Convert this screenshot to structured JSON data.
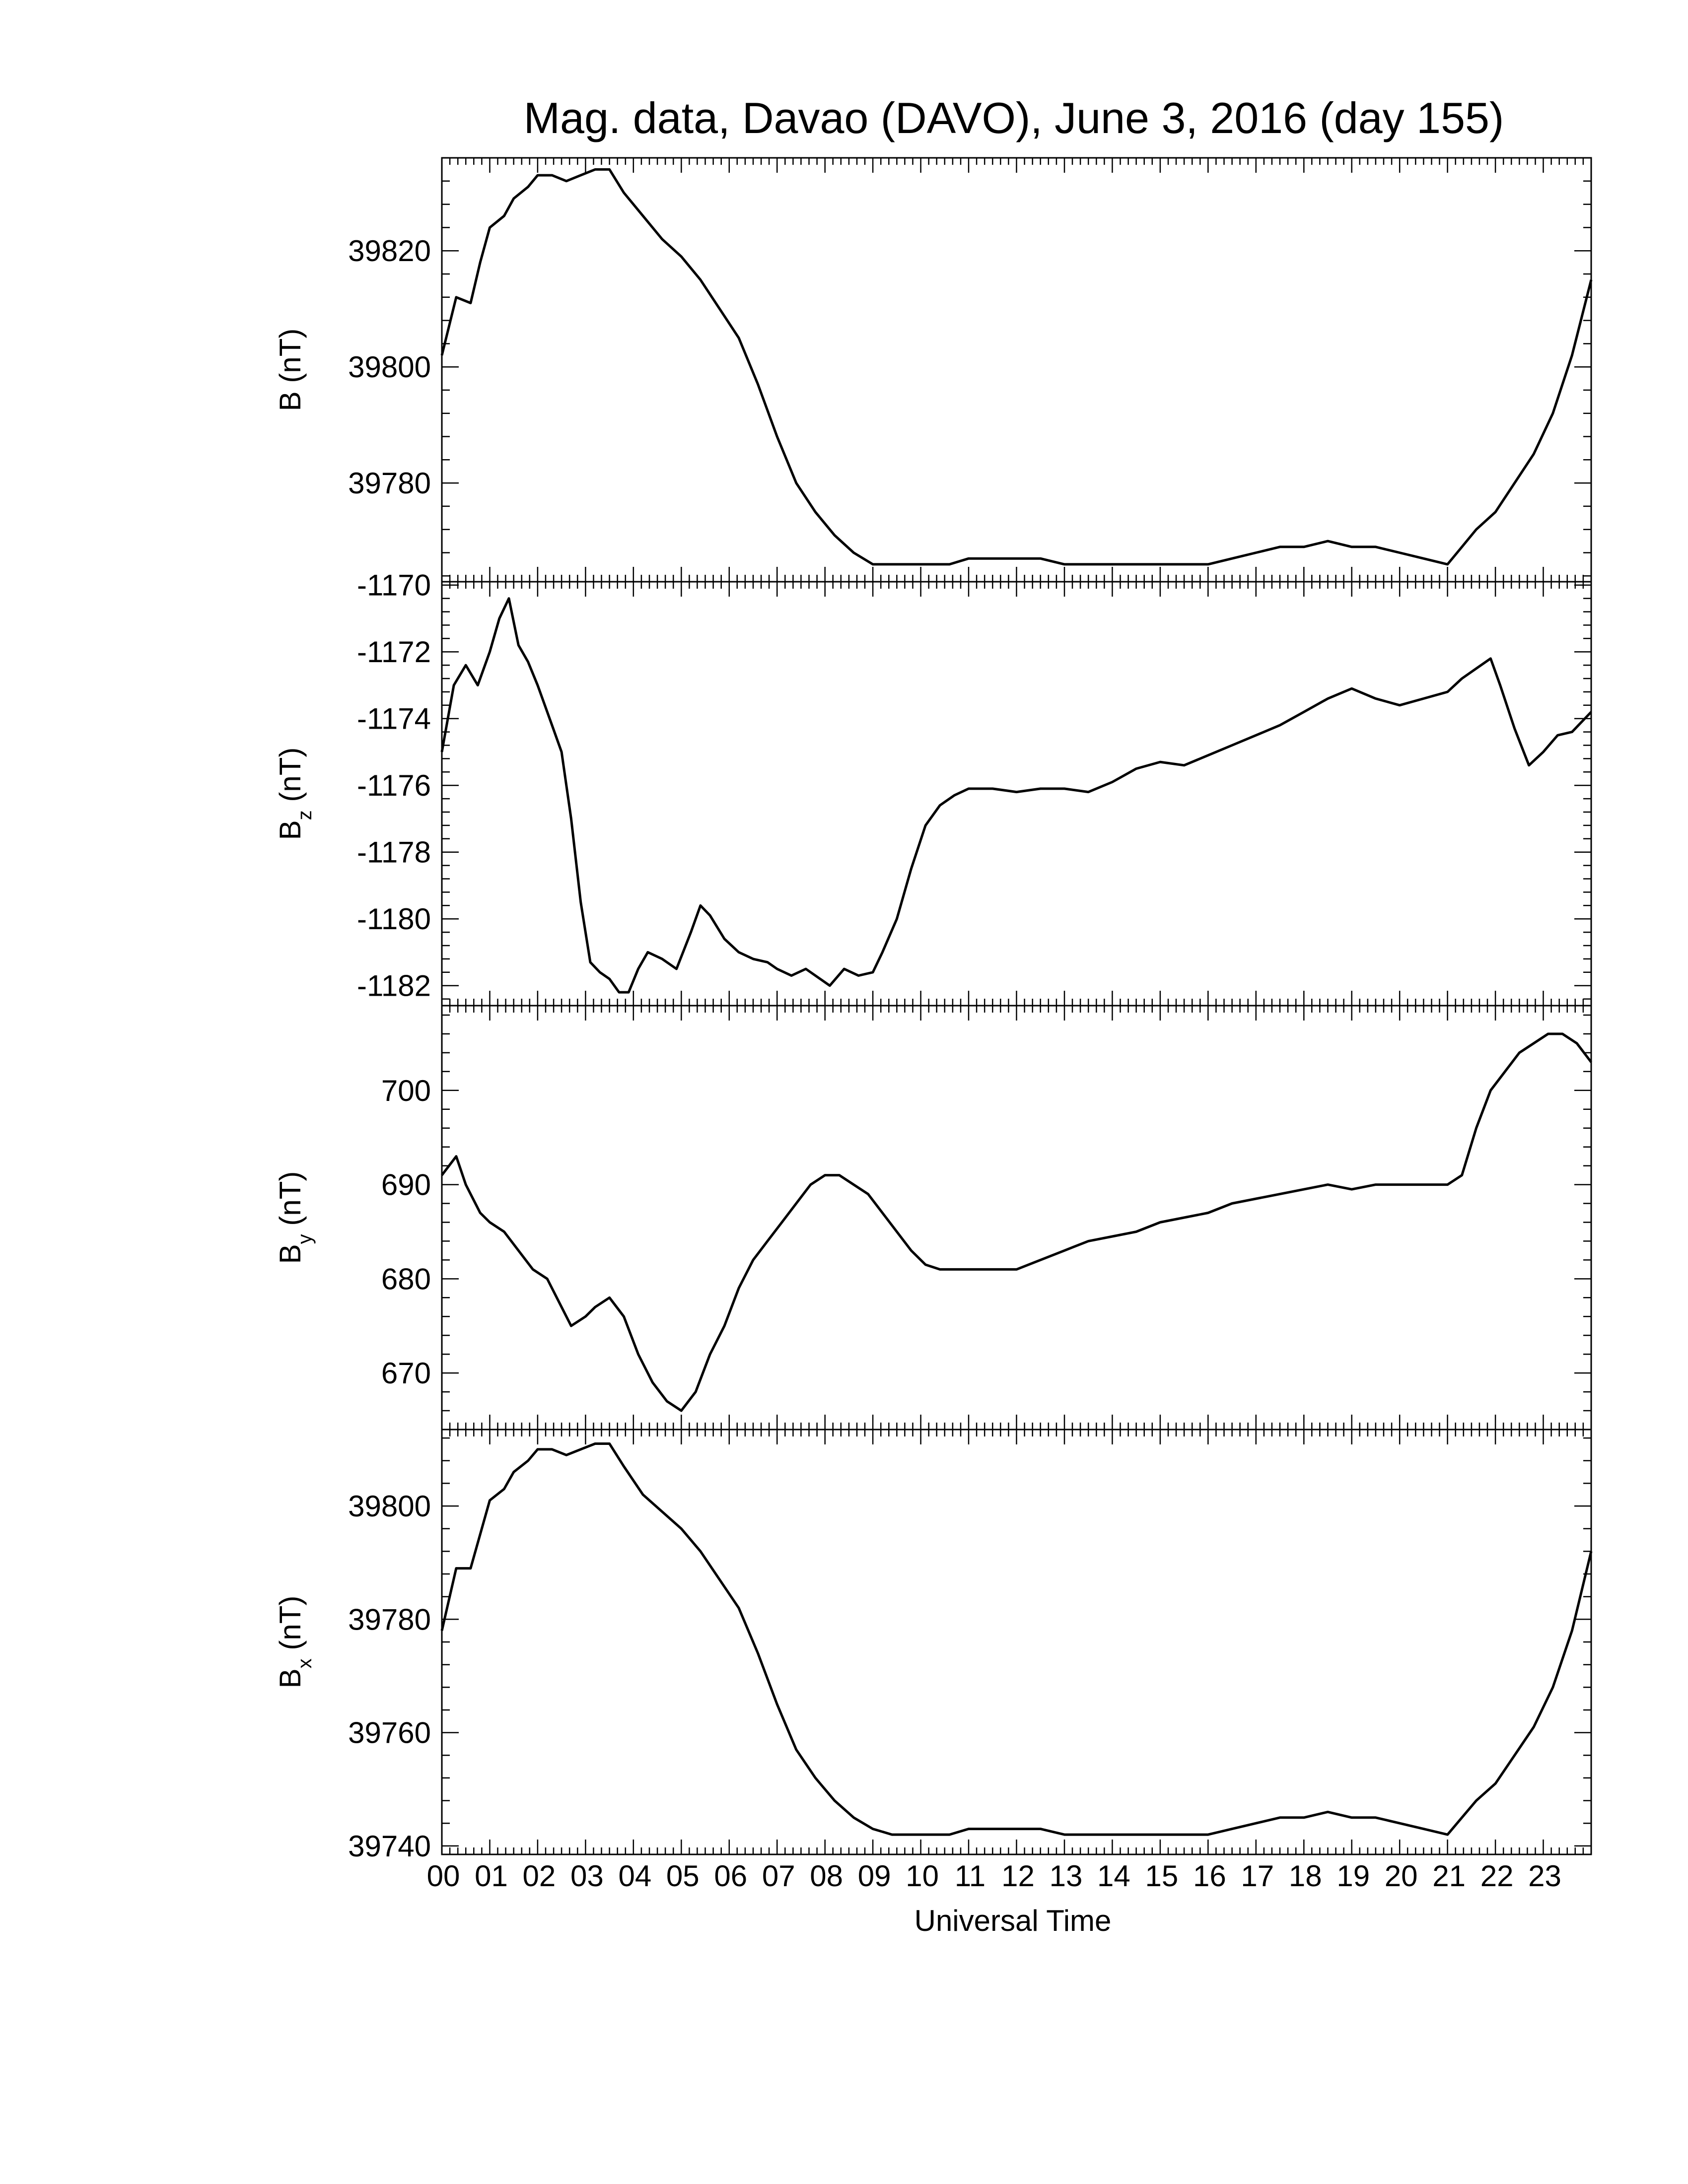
{
  "chart_data": {
    "type": "line",
    "title": "Mag. data, Davao (DAVO), June 3, 2016 (day 155)",
    "xlabel": "Universal Time",
    "xlim": [
      0,
      24
    ],
    "xticks": [
      0,
      1,
      2,
      3,
      4,
      5,
      6,
      7,
      8,
      9,
      10,
      11,
      12,
      13,
      14,
      15,
      16,
      17,
      18,
      19,
      20,
      21,
      22,
      23
    ],
    "xtick_labels": [
      "00",
      "01",
      "02",
      "03",
      "04",
      "05",
      "06",
      "07",
      "08",
      "09",
      "10",
      "11",
      "12",
      "13",
      "14",
      "15",
      "16",
      "17",
      "18",
      "19",
      "20",
      "21",
      "22",
      "23"
    ],
    "grid": false,
    "panels": [
      {
        "name": "B",
        "ylabel": "B (nT)",
        "ylabel_main": "B",
        "ylabel_sub": "",
        "ylabel_unit": " (nT)",
        "ylim": [
          39763,
          39836
        ],
        "yticks": [
          39780,
          39800,
          39820
        ],
        "ytick_labels": [
          "39780",
          "39800",
          "39820"
        ],
        "x": [
          0,
          0.3,
          0.6,
          0.8,
          1.0,
          1.3,
          1.5,
          1.8,
          2.0,
          2.3,
          2.6,
          2.9,
          3.2,
          3.5,
          3.8,
          4.2,
          4.6,
          5.0,
          5.4,
          5.8,
          6.2,
          6.6,
          7.0,
          7.4,
          7.8,
          8.2,
          8.6,
          9.0,
          9.4,
          9.8,
          10.2,
          10.6,
          11.0,
          11.5,
          12.0,
          12.5,
          13.0,
          13.5,
          14.0,
          14.5,
          15.0,
          15.5,
          16.0,
          16.5,
          17.0,
          17.5,
          18.0,
          18.5,
          19.0,
          19.5,
          20.0,
          20.5,
          21.0,
          21.3,
          21.6,
          22.0,
          22.4,
          22.8,
          23.2,
          23.6,
          24.0
        ],
        "values": [
          39802,
          39812,
          39811,
          39818,
          39824,
          39826,
          39829,
          39831,
          39833,
          39833,
          39832,
          39833,
          39834,
          39834,
          39830,
          39826,
          39822,
          39819,
          39815,
          39810,
          39805,
          39797,
          39788,
          39780,
          39775,
          39771,
          39768,
          39766,
          39766,
          39766,
          39766,
          39766,
          39767,
          39767,
          39767,
          39767,
          39766,
          39766,
          39766,
          39766,
          39766,
          39766,
          39766,
          39767,
          39768,
          39769,
          39769,
          39770,
          39769,
          39769,
          39768,
          39767,
          39766,
          39769,
          39772,
          39775,
          39780,
          39785,
          39792,
          39802,
          39815
        ]
      },
      {
        "name": "Bz",
        "ylabel": "Bz (nT)",
        "ylabel_main": "B",
        "ylabel_sub": "z",
        "ylabel_unit": " (nT)",
        "ylim": [
          -1182.6,
          -1169.9
        ],
        "yticks": [
          -1182,
          -1180,
          -1178,
          -1176,
          -1174,
          -1172,
          -1170
        ],
        "ytick_labels": [
          "-1182",
          "-1180",
          "-1178",
          "-1176",
          "-1174",
          "-1172",
          "-1170"
        ],
        "x": [
          0,
          0.25,
          0.5,
          0.75,
          1.0,
          1.2,
          1.4,
          1.6,
          1.8,
          2.0,
          2.3,
          2.5,
          2.7,
          2.9,
          3.1,
          3.3,
          3.5,
          3.7,
          3.9,
          4.1,
          4.3,
          4.6,
          4.9,
          5.2,
          5.4,
          5.6,
          5.9,
          6.2,
          6.5,
          6.8,
          7.0,
          7.3,
          7.6,
          7.9,
          8.1,
          8.4,
          8.7,
          9.0,
          9.2,
          9.5,
          9.8,
          10.1,
          10.4,
          10.7,
          11.0,
          11.5,
          12.0,
          12.5,
          13.0,
          13.5,
          14.0,
          14.5,
          15.0,
          15.5,
          16.0,
          16.5,
          17.0,
          17.5,
          18.0,
          18.5,
          19.0,
          19.5,
          20.0,
          20.5,
          21.0,
          21.3,
          21.6,
          21.9,
          22.1,
          22.4,
          22.7,
          23.0,
          23.3,
          23.6,
          24.0
        ],
        "values": [
          -1175,
          -1173,
          -1172.4,
          -1173,
          -1172,
          -1171,
          -1170.4,
          -1171.8,
          -1172.3,
          -1173,
          -1174.2,
          -1175,
          -1177,
          -1179.5,
          -1181.3,
          -1181.6,
          -1181.8,
          -1182.2,
          -1182.2,
          -1181.5,
          -1181,
          -1181.2,
          -1181.5,
          -1180.4,
          -1179.6,
          -1179.9,
          -1180.6,
          -1181,
          -1181.2,
          -1181.3,
          -1181.5,
          -1181.7,
          -1181.5,
          -1181.8,
          -1182,
          -1181.5,
          -1181.7,
          -1181.6,
          -1181,
          -1180,
          -1178.5,
          -1177.2,
          -1176.6,
          -1176.3,
          -1176.1,
          -1176.1,
          -1176.2,
          -1176.1,
          -1176.1,
          -1176.2,
          -1175.9,
          -1175.5,
          -1175.3,
          -1175.4,
          -1175.1,
          -1174.8,
          -1174.5,
          -1174.2,
          -1173.8,
          -1173.4,
          -1173.1,
          -1173.4,
          -1173.6,
          -1173.4,
          -1173.2,
          -1172.8,
          -1172.5,
          -1172.2,
          -1173,
          -1174.3,
          -1175.4,
          -1175,
          -1174.5,
          -1174.4,
          -1173.8
        ]
      },
      {
        "name": "By",
        "ylabel": "By (nT)",
        "ylabel_main": "B",
        "ylabel_sub": "y",
        "ylabel_unit": " (nT)",
        "ylim": [
          664,
          709
        ],
        "yticks": [
          670,
          680,
          690,
          700
        ],
        "ytick_labels": [
          "670",
          "680",
          "690",
          "700"
        ],
        "x": [
          0,
          0.3,
          0.5,
          0.8,
          1.0,
          1.3,
          1.6,
          1.9,
          2.2,
          2.5,
          2.7,
          3.0,
          3.2,
          3.5,
          3.8,
          4.1,
          4.4,
          4.7,
          5.0,
          5.3,
          5.6,
          5.9,
          6.2,
          6.5,
          6.8,
          7.1,
          7.4,
          7.7,
          8.0,
          8.3,
          8.6,
          8.9,
          9.2,
          9.5,
          9.8,
          10.1,
          10.4,
          10.7,
          11.0,
          11.5,
          12.0,
          12.5,
          13.0,
          13.5,
          14.0,
          14.5,
          15.0,
          15.5,
          16.0,
          16.5,
          17.0,
          17.5,
          18.0,
          18.5,
          19.0,
          19.5,
          20.0,
          20.5,
          21.0,
          21.3,
          21.6,
          21.9,
          22.2,
          22.5,
          22.8,
          23.1,
          23.4,
          23.7,
          24.0
        ],
        "values": [
          691,
          693,
          690,
          687,
          686,
          685,
          683,
          681,
          680,
          677,
          675,
          676,
          677,
          678,
          676,
          672,
          669,
          667,
          666,
          668,
          672,
          675,
          679,
          682,
          684,
          686,
          688,
          690,
          691,
          691,
          690,
          689,
          687,
          685,
          683,
          681.5,
          681,
          681,
          681,
          681,
          681,
          682,
          683,
          684,
          684.5,
          685,
          686,
          686.5,
          687,
          688,
          688.5,
          689,
          689.5,
          690,
          689.5,
          690,
          690,
          690,
          690,
          691,
          696,
          700,
          702,
          704,
          705,
          706,
          706,
          705,
          703
        ]
      },
      {
        "name": "Bx",
        "ylabel": "Bx (nT)",
        "ylabel_main": "B",
        "ylabel_sub": "x",
        "ylabel_unit": " (nT)",
        "ylim": [
          39738.5,
          39813.5
        ],
        "yticks": [
          39740,
          39760,
          39780,
          39800
        ],
        "ytick_labels": [
          "39740",
          "39760",
          "39780",
          "39800"
        ],
        "x": [
          0,
          0.3,
          0.6,
          0.8,
          1.0,
          1.3,
          1.5,
          1.8,
          2.0,
          2.3,
          2.6,
          2.9,
          3.2,
          3.5,
          3.8,
          4.2,
          4.6,
          5.0,
          5.4,
          5.8,
          6.2,
          6.6,
          7.0,
          7.4,
          7.8,
          8.2,
          8.6,
          9.0,
          9.4,
          9.8,
          10.2,
          10.6,
          11.0,
          11.5,
          12.0,
          12.5,
          13.0,
          13.5,
          14.0,
          14.5,
          15.0,
          15.5,
          16.0,
          16.5,
          17.0,
          17.5,
          18.0,
          18.5,
          19.0,
          19.5,
          20.0,
          20.5,
          21.0,
          21.3,
          21.6,
          22.0,
          22.4,
          22.8,
          23.2,
          23.6,
          24.0
        ],
        "values": [
          39778,
          39789,
          39789,
          39795,
          39801,
          39803,
          39806,
          39808,
          39810,
          39810,
          39809,
          39810,
          39811,
          39811,
          39807,
          39802,
          39799,
          39796,
          39792,
          39787,
          39782,
          39774,
          39765,
          39757,
          39752,
          39748,
          39745,
          39743,
          39742,
          39742,
          39742,
          39742,
          39743,
          39743,
          39743,
          39743,
          39742,
          39742,
          39742,
          39742,
          39742,
          39742,
          39742,
          39743,
          39744,
          39745,
          39745,
          39746,
          39745,
          39745,
          39744,
          39743,
          39742,
          39745,
          39748,
          39751,
          39756,
          39761,
          39768,
          39778,
          39792
        ]
      }
    ]
  }
}
